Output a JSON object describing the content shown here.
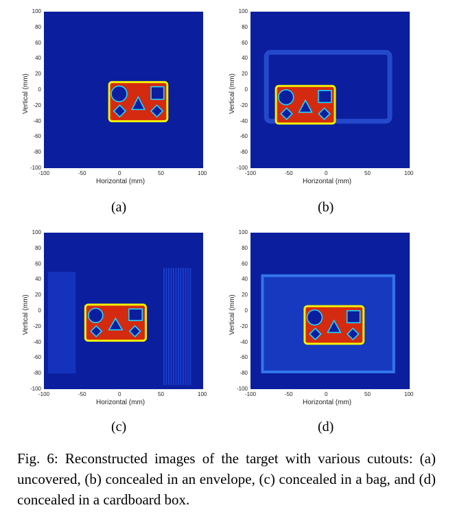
{
  "figure": {
    "caption": "Fig. 6: Reconstructed images of the target with various cutouts: (a) uncovered, (b) concealed in an envelope, (c) concealed in a bag, and (d) concealed in a cardboard box.",
    "subfigures": [
      {
        "label": "(a)",
        "xlabel": "Horizontal (mm)",
        "ylabel": "Vertical (mm)"
      },
      {
        "label": "(b)",
        "xlabel": "Horizontal (mm)",
        "ylabel": "Vertical (mm)"
      },
      {
        "label": "(c)",
        "xlabel": "Horizontal (mm)",
        "ylabel": "Vertical (mm)"
      },
      {
        "label": "(d)",
        "xlabel": "Horizontal (mm)",
        "ylabel": "Vertical (mm)"
      }
    ],
    "x_ticks": [
      "-100",
      "-50",
      "0",
      "50",
      "100"
    ],
    "y_ticks": [
      "100",
      "80",
      "60",
      "40",
      "20",
      "0",
      "-20",
      "-40",
      "-60",
      "-80",
      "-100"
    ],
    "colors": {
      "background": "#0a1e9e",
      "target_fill": "#d42a10",
      "target_edge": "#f2f200"
    }
  },
  "chart_data": [
    {
      "type": "heatmap",
      "panel": "(a)",
      "xlabel": "Horizontal (mm)",
      "ylabel": "Vertical (mm)",
      "xlim": [
        -100,
        100
      ],
      "ylim": [
        -100,
        100
      ],
      "target_box_mm": {
        "x": [
          -18,
          55
        ],
        "y": [
          -40,
          10
        ]
      }
    },
    {
      "type": "heatmap",
      "panel": "(b)",
      "xlabel": "Horizontal (mm)",
      "ylabel": "Vertical (mm)",
      "xlim": [
        -100,
        100
      ],
      "ylim": [
        -100,
        100
      ],
      "target_box_mm": {
        "x": [
          -68,
          6
        ],
        "y": [
          -43,
          5
        ]
      }
    },
    {
      "type": "heatmap",
      "panel": "(c)",
      "xlabel": "Horizontal (mm)",
      "ylabel": "Vertical (mm)",
      "xlim": [
        -100,
        100
      ],
      "ylim": [
        -100,
        100
      ],
      "target_box_mm": {
        "x": [
          -48,
          28
        ],
        "y": [
          -38,
          8
        ]
      }
    },
    {
      "type": "heatmap",
      "panel": "(d)",
      "xlabel": "Horizontal (mm)",
      "ylabel": "Vertical (mm)",
      "xlim": [
        -100,
        100
      ],
      "ylim": [
        -100,
        100
      ],
      "target_box_mm": {
        "x": [
          -32,
          42
        ],
        "y": [
          -42,
          6
        ]
      }
    }
  ]
}
